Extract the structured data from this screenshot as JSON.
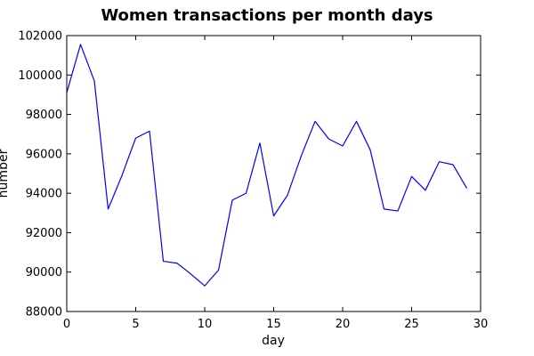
{
  "chart_data": {
    "type": "line",
    "title": "Women transactions per month days",
    "xlabel": "day",
    "ylabel": "number",
    "xlim": [
      0,
      30
    ],
    "ylim": [
      88000,
      102000
    ],
    "x_ticks": [
      0,
      5,
      10,
      15,
      20,
      25,
      30
    ],
    "y_ticks": [
      88000,
      90000,
      92000,
      94000,
      96000,
      98000,
      100000,
      102000
    ],
    "grid": false,
    "legend": "none",
    "series": [
      {
        "color": "#0000ff",
        "x": [
          0,
          1,
          2,
          3,
          4,
          5,
          6,
          7,
          8,
          9,
          10,
          11,
          12,
          13,
          14,
          15,
          16,
          17,
          18,
          19,
          20,
          21,
          22,
          23,
          24,
          25,
          26,
          27,
          28,
          29
        ],
        "y": [
          99100,
          101550,
          99700,
          93200,
          94900,
          96800,
          97150,
          90550,
          90450,
          89900,
          89300,
          90100,
          93650,
          94000,
          96550,
          92850,
          93900,
          95900,
          97650,
          96750,
          96400,
          97650,
          96200,
          93200,
          93100,
          94850,
          94150,
          95600,
          95450,
          94250
        ]
      }
    ]
  }
}
